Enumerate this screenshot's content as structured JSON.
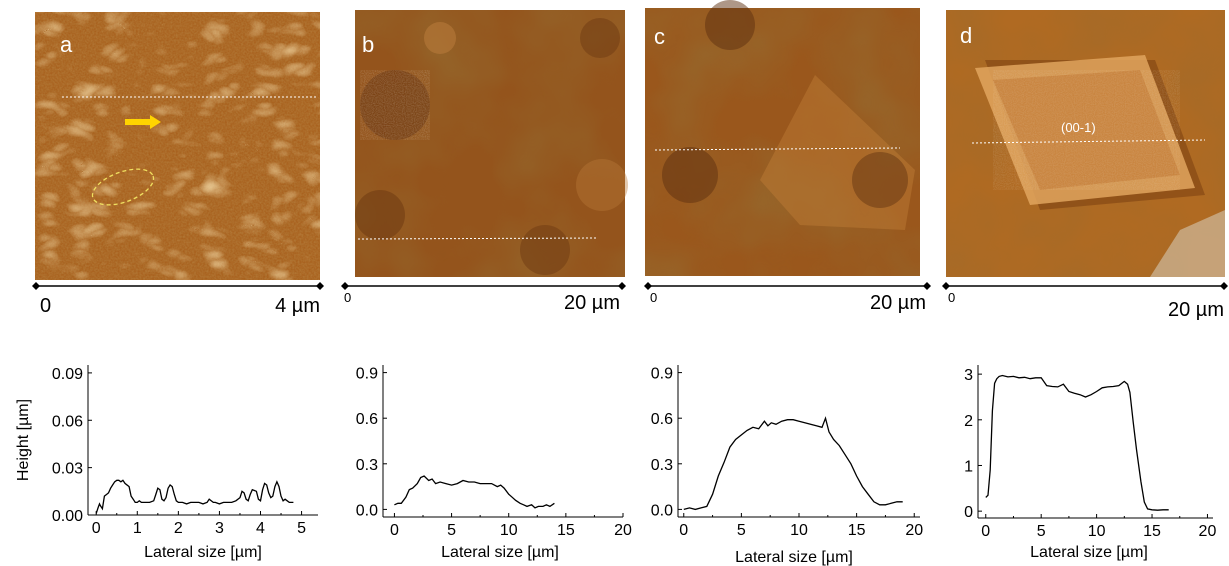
{
  "images": [
    {
      "letter": "a",
      "scale_start": "0",
      "scale_end": "4 µm",
      "palette": {
        "base": "#a8601d",
        "light": "#f2c07a",
        "dark": "#5a2c0a"
      }
    },
    {
      "letter": "b",
      "scale_start": "0",
      "scale_end": "20 µm",
      "palette": {
        "base": "#94541c",
        "light": "#d99a55",
        "dark": "#4a2208"
      }
    },
    {
      "letter": "c",
      "scale_start": "0",
      "scale_end": "20 µm",
      "palette": {
        "base": "#9a571c",
        "light": "#d8964e",
        "dark": "#4d2507"
      }
    },
    {
      "letter": "d",
      "scale_start": "0",
      "scale_end": "20 µm",
      "facet_label": "(00-1)",
      "palette": {
        "base": "#b06a22",
        "light": "#e6b06a",
        "dark": "#5c2e08"
      }
    }
  ],
  "arrow_color": "#ffd400",
  "ellipse_color": "#f0e060",
  "chart_data": [
    {
      "type": "line",
      "panel": "a",
      "xlabel": "Lateral size [µm]",
      "ylabel": "Height [µm]",
      "xlim": [
        -0.2,
        5.4
      ],
      "ylim": [
        0,
        0.095
      ],
      "xticks": [
        0,
        1,
        2,
        3,
        4,
        5
      ],
      "xtick_labels": [
        "0",
        "1",
        "2",
        "3",
        "4",
        "5"
      ],
      "yticks": [
        0,
        0.03,
        0.06,
        0.09
      ],
      "ytick_labels": [
        "0.00",
        "0.03",
        "0.06",
        "0.09"
      ],
      "series": [
        {
          "x": [
            0.0,
            0.05,
            0.08,
            0.1,
            0.15,
            0.2,
            0.25,
            0.3,
            0.35,
            0.4,
            0.45,
            0.5,
            0.55,
            0.6,
            0.65,
            0.7,
            0.8,
            0.85,
            0.9,
            0.95,
            1.0,
            1.05,
            1.1,
            1.2,
            1.3,
            1.4,
            1.45,
            1.5,
            1.55,
            1.6,
            1.65,
            1.7,
            1.75,
            1.8,
            1.85,
            1.9,
            1.95,
            2.0,
            2.05,
            2.1,
            2.2,
            2.3,
            2.4,
            2.5,
            2.6,
            2.7,
            2.75,
            2.8,
            2.85,
            2.9,
            3.0,
            3.1,
            3.2,
            3.3,
            3.4,
            3.5,
            3.55,
            3.6,
            3.65,
            3.7,
            3.75,
            3.8,
            3.9,
            3.95,
            4.0,
            4.05,
            4.1,
            4.15,
            4.2,
            4.25,
            4.3,
            4.35,
            4.4,
            4.45,
            4.5,
            4.55,
            4.6,
            4.65,
            4.7,
            4.75,
            4.8
          ],
          "y": [
            0.001,
            0.005,
            0.007,
            0.006,
            0.004,
            0.012,
            0.013,
            0.014,
            0.017,
            0.019,
            0.021,
            0.022,
            0.022,
            0.021,
            0.022,
            0.02,
            0.018,
            0.012,
            0.01,
            0.008,
            0.008,
            0.009,
            0.008,
            0.008,
            0.008,
            0.009,
            0.013,
            0.017,
            0.016,
            0.01,
            0.009,
            0.011,
            0.017,
            0.019,
            0.018,
            0.013,
            0.009,
            0.008,
            0.008,
            0.008,
            0.007,
            0.008,
            0.008,
            0.008,
            0.007,
            0.008,
            0.01,
            0.009,
            0.008,
            0.008,
            0.007,
            0.008,
            0.008,
            0.008,
            0.009,
            0.011,
            0.015,
            0.014,
            0.01,
            0.009,
            0.013,
            0.016,
            0.015,
            0.01,
            0.009,
            0.016,
            0.02,
            0.019,
            0.014,
            0.011,
            0.012,
            0.018,
            0.021,
            0.018,
            0.012,
            0.009,
            0.01,
            0.009,
            0.008,
            0.008,
            0.008
          ]
        }
      ]
    },
    {
      "type": "line",
      "panel": "b",
      "xlabel": "Lateral size [µm]",
      "ylabel": "",
      "xlim": [
        -1,
        20
      ],
      "ylim": [
        -0.05,
        0.95
      ],
      "xticks": [
        0,
        5,
        10,
        15,
        20
      ],
      "xtick_labels": [
        "0",
        "5",
        "10",
        "15",
        "20"
      ],
      "yticks": [
        0.0,
        0.3,
        0.6,
        0.9
      ],
      "ytick_labels": [
        "0.0",
        "0.3",
        "0.6",
        "0.9"
      ],
      "series": [
        {
          "x": [
            0,
            0.3,
            0.6,
            1.0,
            1.3,
            1.6,
            2.0,
            2.3,
            2.6,
            3.0,
            3.3,
            3.6,
            4.0,
            4.5,
            5.0,
            5.5,
            6.0,
            6.5,
            7.0,
            7.5,
            8.0,
            8.5,
            9.0,
            9.3,
            9.6,
            10.0,
            10.3,
            10.6,
            11.0,
            11.3,
            11.6,
            12.0,
            12.3,
            12.6,
            13.0,
            13.3,
            13.6,
            14.0
          ],
          "y": [
            0.03,
            0.04,
            0.04,
            0.08,
            0.13,
            0.14,
            0.17,
            0.21,
            0.22,
            0.19,
            0.2,
            0.17,
            0.18,
            0.17,
            0.16,
            0.17,
            0.19,
            0.18,
            0.18,
            0.17,
            0.17,
            0.17,
            0.15,
            0.16,
            0.14,
            0.1,
            0.08,
            0.06,
            0.04,
            0.03,
            0.02,
            0.03,
            0.01,
            0.02,
            0.02,
            0.03,
            0.02,
            0.04
          ]
        }
      ]
    },
    {
      "type": "line",
      "panel": "c",
      "xlabel": "Lateral size [µm]",
      "ylabel": "",
      "xlim": [
        -0.5,
        20.5
      ],
      "ylim": [
        -0.05,
        0.95
      ],
      "xticks": [
        0,
        5,
        10,
        15,
        20
      ],
      "xtick_labels": [
        "0",
        "5",
        "10",
        "15",
        "20"
      ],
      "yticks": [
        0.0,
        0.3,
        0.6,
        0.9
      ],
      "ytick_labels": [
        "0.0",
        "0.3",
        "0.6",
        "0.9"
      ],
      "series": [
        {
          "x": [
            0,
            0.5,
            1.0,
            1.5,
            2.0,
            2.5,
            3.0,
            3.5,
            4.0,
            4.5,
            5.0,
            5.5,
            6.0,
            6.5,
            7.0,
            7.3,
            7.6,
            8.0,
            8.5,
            9.0,
            9.5,
            10.0,
            10.5,
            11.0,
            11.5,
            12.0,
            12.3,
            12.6,
            13.0,
            13.5,
            14.0,
            14.5,
            15.0,
            15.5,
            16.0,
            16.5,
            17.0,
            17.5,
            18.0,
            18.5,
            19.0
          ],
          "y": [
            0.0,
            0.01,
            0.0,
            0.01,
            0.02,
            0.1,
            0.22,
            0.31,
            0.41,
            0.46,
            0.49,
            0.52,
            0.54,
            0.53,
            0.58,
            0.55,
            0.57,
            0.56,
            0.58,
            0.59,
            0.59,
            0.58,
            0.57,
            0.56,
            0.55,
            0.54,
            0.6,
            0.51,
            0.46,
            0.42,
            0.36,
            0.3,
            0.22,
            0.15,
            0.1,
            0.05,
            0.03,
            0.03,
            0.04,
            0.05,
            0.05
          ]
        }
      ]
    },
    {
      "type": "line",
      "panel": "d",
      "xlabel": "Lateral size [µm]",
      "ylabel": "",
      "xlim": [
        -0.7,
        20.5
      ],
      "ylim": [
        -0.15,
        3.2
      ],
      "xticks": [
        0,
        5,
        10,
        15,
        20
      ],
      "xtick_labels": [
        "0",
        "5",
        "10",
        "15",
        "20"
      ],
      "yticks": [
        0,
        1,
        2,
        3
      ],
      "ytick_labels": [
        "0",
        "1",
        "2",
        "3"
      ],
      "series": [
        {
          "x": [
            0.0,
            0.2,
            0.4,
            0.6,
            0.8,
            1.0,
            1.2,
            1.5,
            2.0,
            2.5,
            3.0,
            3.5,
            4.0,
            4.5,
            5.0,
            5.5,
            6.0,
            6.5,
            7.0,
            7.5,
            8.0,
            8.5,
            9.0,
            9.5,
            10.0,
            10.5,
            11.0,
            11.5,
            12.0,
            12.5,
            12.8,
            13.0,
            13.3,
            13.6,
            14.0,
            14.3,
            14.6,
            15.0,
            15.5,
            16.0,
            16.5
          ],
          "y": [
            0.3,
            0.35,
            0.9,
            2.2,
            2.8,
            2.9,
            2.95,
            2.97,
            2.94,
            2.95,
            2.92,
            2.93,
            2.9,
            2.92,
            2.92,
            2.75,
            2.73,
            2.72,
            2.78,
            2.62,
            2.58,
            2.55,
            2.5,
            2.55,
            2.62,
            2.7,
            2.72,
            2.73,
            2.75,
            2.84,
            2.78,
            2.6,
            1.95,
            1.35,
            0.65,
            0.2,
            0.05,
            0.03,
            0.02,
            0.03,
            0.03
          ]
        }
      ]
    }
  ]
}
